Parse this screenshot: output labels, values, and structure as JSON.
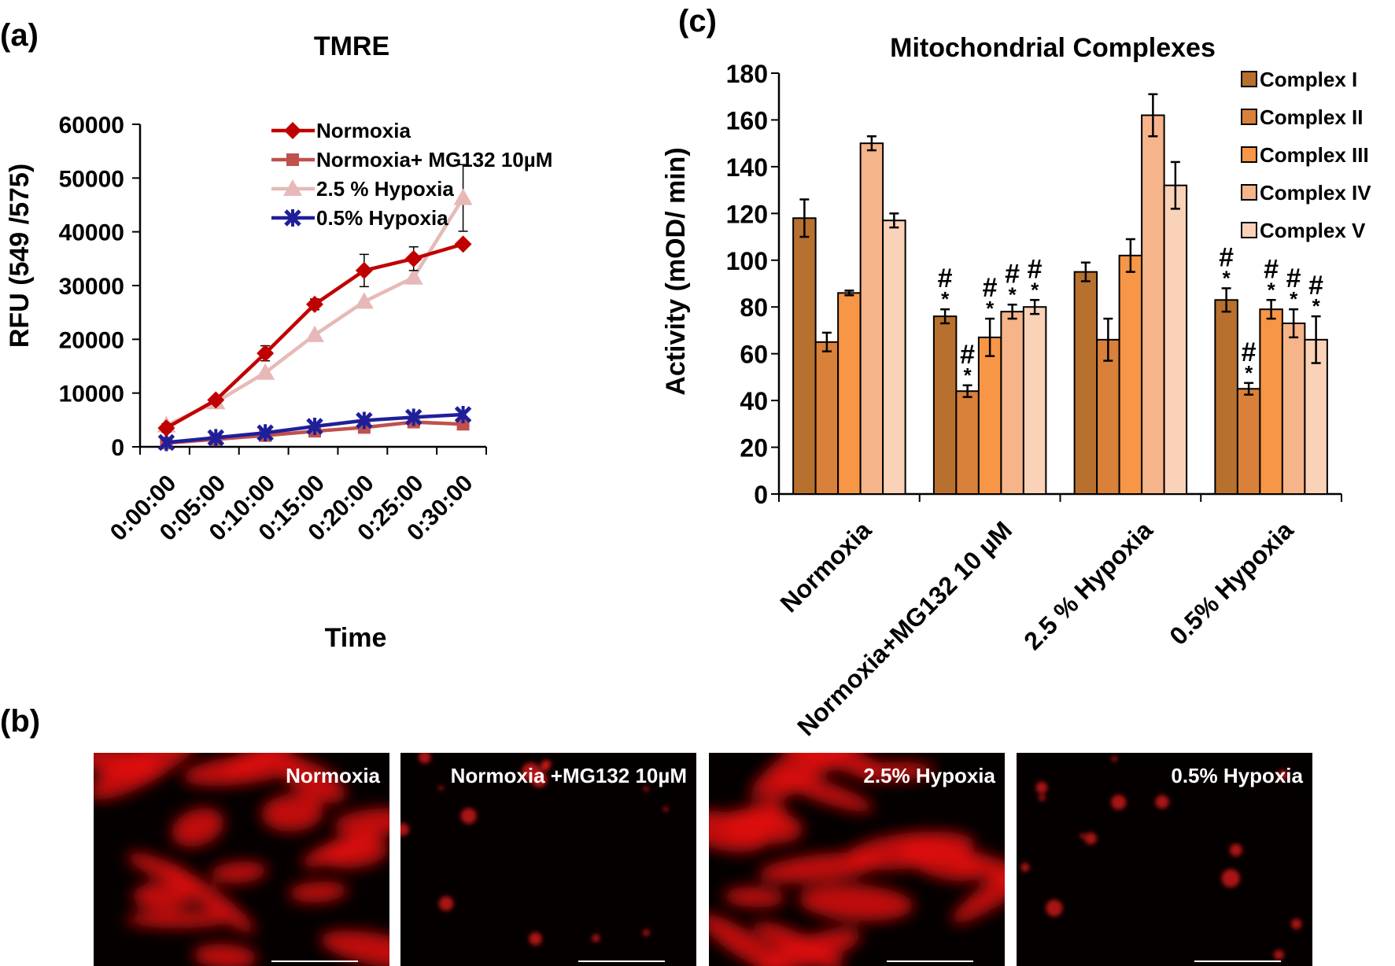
{
  "panels": {
    "a": "(a)",
    "b": "(b)",
    "c": "(c)"
  },
  "chart_data": [
    {
      "type": "line",
      "title": "TMRE",
      "xlabel": "Time",
      "ylabel": "RFU (549 /575)",
      "categories": [
        "0:00:00",
        "0:05:00",
        "0:10:00",
        "0:15:00",
        "0:20:00",
        "0:25:00",
        "0:30:00"
      ],
      "ylim": [
        0,
        60000
      ],
      "yticks": [
        "0",
        "10000",
        "20000",
        "30000",
        "40000",
        "50000",
        "60000"
      ],
      "grid": false,
      "legend_position": "top",
      "series": [
        {
          "name": "Normoxia",
          "color": "#c00000",
          "marker": "diamond",
          "values": [
            3500,
            8700,
            17400,
            26500,
            32800,
            35000,
            37700
          ],
          "errors": [
            800,
            600,
            1400,
            1000,
            3000,
            2200,
            0
          ]
        },
        {
          "name": "Normoxia+ MG132 10µM",
          "color": "#c0504d",
          "marker": "square",
          "values": [
            700,
            1400,
            2100,
            2900,
            3600,
            4600,
            4200
          ],
          "errors": [
            0,
            0,
            0,
            0,
            0,
            0,
            0
          ]
        },
        {
          "name": "2.5 % Hypoxia",
          "color": "#e6b9b8",
          "marker": "triangle",
          "values": [
            4000,
            8300,
            13800,
            20800,
            27000,
            31500,
            46300
          ],
          "errors": [
            0,
            0,
            0,
            0,
            0,
            0,
            6200
          ]
        },
        {
          "name": "0.5% Hypoxia",
          "color": "#1f1f9a",
          "marker": "star",
          "values": [
            800,
            1700,
            2600,
            3800,
            4900,
            5500,
            6000
          ],
          "errors": [
            0,
            0,
            0,
            0,
            0,
            0,
            0
          ]
        }
      ]
    },
    {
      "type": "bar",
      "title": "Mitochondrial Complexes",
      "xlabel": "",
      "ylabel": "Activity (mOD/ min)",
      "categories": [
        "Normoxia",
        "Normoxia+MG132 10 µM",
        "2.5 % Hypoxia",
        "0.5%  Hypoxia"
      ],
      "ylim": [
        0,
        180
      ],
      "yticks": [
        "0",
        "20",
        "40",
        "60",
        "80",
        "100",
        "120",
        "140",
        "160",
        "180"
      ],
      "grid": false,
      "legend_position": "top-right",
      "series": [
        {
          "name": "Complex I",
          "color": "#b8702f",
          "values": [
            118,
            76,
            95,
            83
          ],
          "errors": [
            8,
            3,
            4,
            5
          ]
        },
        {
          "name": "Complex II",
          "color": "#d9813a",
          "values": [
            65,
            44,
            66,
            45
          ],
          "errors": [
            4,
            2.5,
            9,
            2.5
          ]
        },
        {
          "name": "Complex III",
          "color": "#f79646",
          "values": [
            86,
            67,
            102,
            79
          ],
          "errors": [
            1,
            8,
            7,
            4
          ]
        },
        {
          "name": "Complex IV",
          "color": "#f5b48a",
          "values": [
            150,
            78,
            162,
            73
          ],
          "errors": [
            3,
            3,
            9,
            6
          ]
        },
        {
          "name": "Complex V",
          "color": "#fad2b8",
          "values": [
            117,
            80,
            132,
            66
          ],
          "errors": [
            3,
            3,
            10,
            10
          ]
        }
      ],
      "significance": {
        "hash": "#",
        "star": "*",
        "marked": [
          [
            1,
            0
          ],
          [
            1,
            1
          ],
          [
            1,
            2
          ],
          [
            1,
            3
          ],
          [
            1,
            4
          ],
          [
            3,
            0
          ],
          [
            3,
            1
          ],
          [
            3,
            2
          ],
          [
            3,
            3
          ],
          [
            3,
            4
          ]
        ]
      }
    }
  ],
  "micrographs": [
    {
      "label": "Normoxia",
      "intensity": "high"
    },
    {
      "label": "Normoxia +MG132 10µM",
      "intensity": "low"
    },
    {
      "label": "2.5% Hypoxia",
      "intensity": "high"
    },
    {
      "label": "0.5% Hypoxia",
      "intensity": "low"
    }
  ]
}
